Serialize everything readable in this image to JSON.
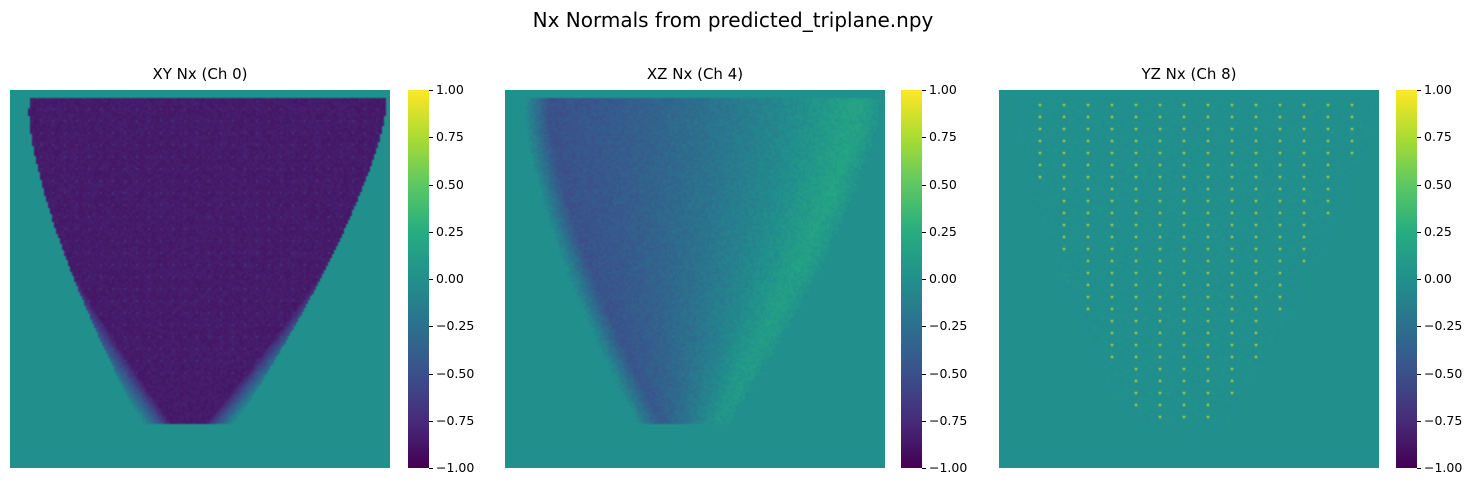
{
  "chart_data": {
    "title": "Nx Normals from predicted_triplane.npy",
    "type": "heatmap",
    "colormap": "viridis",
    "panels": [
      {
        "title": "XY Nx (Ch 0)",
        "pattern": "inverted_v_filled",
        "region_value": -0.85,
        "background_value": 0.0
      },
      {
        "title": "XZ Nx (Ch 4)",
        "pattern": "shaded_v_gradient",
        "left_value": -0.5,
        "right_value": 0.25,
        "background_value": 0.0
      },
      {
        "title": "YZ Nx (Ch 8)",
        "pattern": "dot_grid",
        "dot_value": 0.9,
        "region_value": 0.0,
        "background_value": 0.0
      }
    ],
    "colorbar": {
      "range": [
        -1.0,
        1.0
      ],
      "ticks": [
        "1.00",
        "0.75",
        "0.50",
        "0.25",
        "0.00",
        "−0.25",
        "−0.50",
        "−0.75",
        "−1.00"
      ]
    }
  }
}
